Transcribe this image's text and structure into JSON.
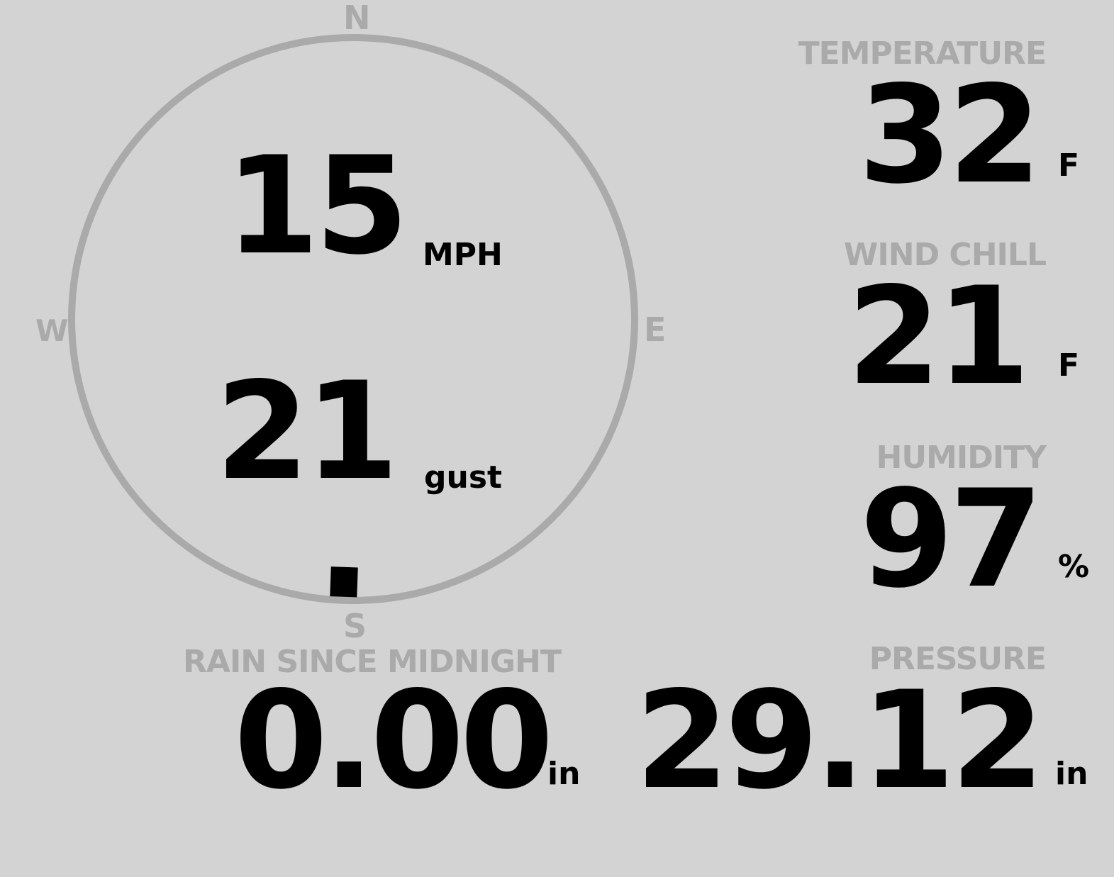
{
  "wind": {
    "speed": "15",
    "speed_unit": "MPH",
    "gust": "21",
    "gust_unit": "gust",
    "direction_deg": 182,
    "compass": {
      "n": "N",
      "e": "E",
      "s": "S",
      "w": "W"
    }
  },
  "temperature": {
    "label": "TEMPERATURE",
    "value": "32",
    "unit": "F"
  },
  "wind_chill": {
    "label": "WIND CHILL",
    "value": "21",
    "unit": "F"
  },
  "humidity": {
    "label": "HUMIDITY",
    "value": "97",
    "unit": "%"
  },
  "rain": {
    "label": "RAIN SINCE MIDNIGHT",
    "value": "0.00",
    "unit": "in"
  },
  "pressure": {
    "label": "PRESSURE",
    "value": "29.12",
    "unit": "in"
  },
  "colors": {
    "background": "#d3d3d3",
    "label": "#aaaaaa",
    "value": "#000000",
    "dial": "#aaaaaa"
  }
}
